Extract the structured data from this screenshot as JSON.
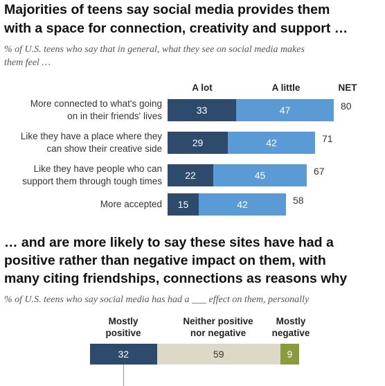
{
  "chart_data": [
    {
      "type": "bar",
      "title": "Majorities of teens say social media provides them with a space for connection, creativity and support …",
      "subtitle": "% of U.S. teens who say that in general, what they see on social media makes them feel …",
      "columns": [
        "A lot",
        "A little",
        "NET"
      ],
      "categories": [
        "More connected to what's going on in their friends' lives",
        "Like they have a place where they can show their creative side",
        "Like they have people who can support them through tough times",
        "More accepted"
      ],
      "category_lines": [
        [
          "More connected to what's going",
          "on in their friends' lives"
        ],
        [
          "Like they have a place where they",
          "can show their creative side"
        ],
        [
          "Like they have people who can",
          "support them through tough times"
        ],
        [
          "More accepted"
        ]
      ],
      "series": [
        {
          "name": "A lot",
          "values": [
            33,
            29,
            22,
            15
          ],
          "color": "#2e4b6e"
        },
        {
          "name": "A little",
          "values": [
            47,
            42,
            45,
            42
          ],
          "color": "#5b9bd5"
        }
      ],
      "net": [
        80,
        71,
        67,
        58
      ],
      "stacked": true
    },
    {
      "type": "bar",
      "title": "… and are more likely to say these sites have had a positive rather than negative impact on them, with many citing friendships, connections as reasons why",
      "subtitle": "% of U.S. teens who say social media has had a ___ effect on them, personally",
      "series": [
        {
          "name": "Mostly positive",
          "values": [
            32
          ],
          "color": "#2e4b6e"
        },
        {
          "name": "Neither positive nor negative",
          "values": [
            59
          ],
          "color": "#dcd9c9"
        },
        {
          "name": "Mostly negative",
          "values": [
            9
          ],
          "color": "#8a9a3f"
        }
      ],
      "stacked": true
    }
  ],
  "text": {
    "title1_l1": "Majorities of teens say social media provides them",
    "title1_l2": "with a space for connection, creativity and support …",
    "sub1_l1": "% of U.S. teens who say that in general, what they see on social media makes",
    "sub1_l2": "them feel …",
    "title2_l1": "… and are more likely to say these sites have had a",
    "title2_l2": "positive rather than negative impact on them, with",
    "title2_l3": "many citing friendships, connections as reasons why",
    "sub2": "% of U.S. teens who say social media has had a ___ effect on them, personally",
    "head_alot": "A lot",
    "head_alittle": "A little",
    "head_net": "NET",
    "head_pos_l1": "Mostly",
    "head_pos_l2": "positive",
    "head_neither_l1": "Neither positive",
    "head_neither_l2": "nor negative",
    "head_neg_l1": "Mostly",
    "head_neg_l2": "negative"
  }
}
